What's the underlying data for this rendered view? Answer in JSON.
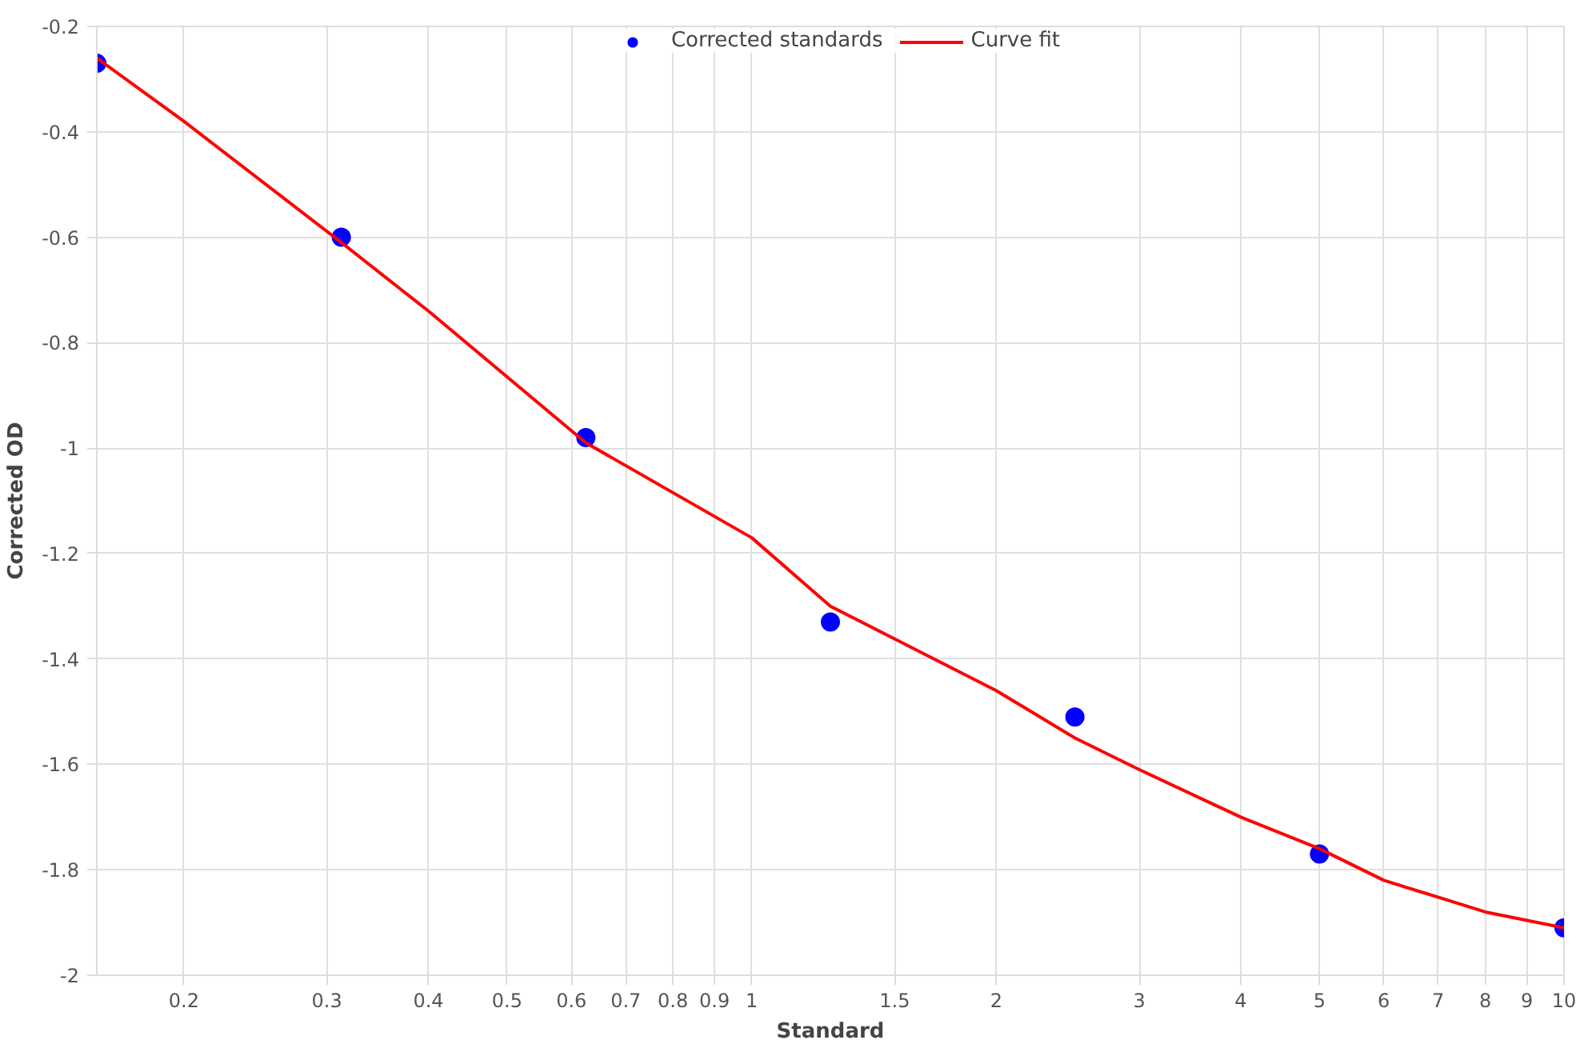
{
  "chart_data": {
    "type": "scatter",
    "xlabel": "Standard",
    "ylabel": "Corrected OD",
    "log": "x",
    "grid": true,
    "legend": "top",
    "marker": "circle",
    "xlim": [
      0.15625,
      10
    ],
    "ylim": [
      -2,
      -0.2
    ],
    "xticks": [
      0.2,
      0.3,
      0.4,
      0.5,
      0.6,
      0.7,
      0.8,
      0.9,
      1,
      1.5,
      2,
      3,
      4,
      5,
      6,
      7,
      8,
      9,
      10
    ],
    "yticks": [
      -2,
      -1.8,
      -1.6,
      -1.4,
      -1.2,
      -1,
      -0.8,
      -0.6,
      -0.4,
      -0.2
    ],
    "series": [
      {
        "name": "Corrected standards",
        "color": "#0000ff",
        "x": [
          0.15625,
          0.3125,
          0.625,
          1.25,
          2.5,
          5,
          10
        ],
        "values": [
          -0.27,
          -0.6,
          -0.98,
          -1.33,
          -1.51,
          -1.77,
          -1.91
        ]
      },
      {
        "name": "Curve fit",
        "color": "#ff0000",
        "type": "line",
        "marker": "none",
        "line_style": "solid",
        "x": [
          0.15625,
          0.2,
          0.3125,
          0.4,
          0.625,
          1,
          1.25,
          2,
          2.5,
          3,
          4,
          5,
          6,
          8,
          10
        ],
        "values": [
          -0.26,
          -0.38,
          -0.61,
          -0.74,
          -0.99,
          -1.17,
          -1.3,
          -1.46,
          -1.55,
          -1.61,
          -1.7,
          -1.76,
          -1.82,
          -1.88,
          -1.91
        ]
      }
    ]
  }
}
